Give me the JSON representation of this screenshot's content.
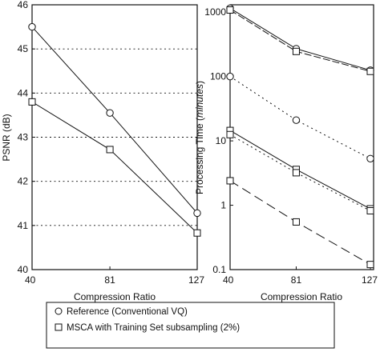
{
  "chart_data": [
    {
      "type": "line",
      "xlabel": "Compression Ratio",
      "ylabel": "PSNR (dB)",
      "x": [
        40,
        81,
        127
      ],
      "x_tick_labels": [
        "40",
        "81",
        "127"
      ],
      "y_ticks": [
        40,
        41,
        42,
        43,
        44,
        45,
        46
      ],
      "y_tick_labels": [
        "40",
        "41",
        "42",
        "43",
        "44",
        "45",
        "46"
      ],
      "ylim": [
        40,
        46
      ],
      "grid": "dotted horizontal at 41, 42, 43, 44, 45",
      "series": [
        {
          "marker": "circle",
          "dash": "solid",
          "values": [
            45.5,
            43.55,
            41.28
          ]
        },
        {
          "marker": "square",
          "dash": "solid",
          "values": [
            43.8,
            42.72,
            40.83
          ]
        }
      ]
    },
    {
      "type": "line",
      "xlabel": "Compression Ratio",
      "ylabel_prefix": "Processing Time (",
      "ylabel_italic": "minutes",
      "ylabel_suffix": ")",
      "scale": "log",
      "x": [
        40,
        81,
        127
      ],
      "x_tick_labels": [
        "40",
        "81",
        "127"
      ],
      "y_ticks": [
        0.1,
        1,
        10,
        100,
        1000
      ],
      "y_tick_labels": [
        "0.1",
        "1",
        "10",
        "100",
        "1000"
      ],
      "ylim": [
        0.1,
        1300
      ],
      "series": [
        {
          "marker": "circle",
          "dash": "solid",
          "values": [
            1150,
            270,
            125
          ]
        },
        {
          "marker": "square",
          "dash": "dashed",
          "values": [
            1080,
            245,
            120
          ]
        },
        {
          "marker": "circle",
          "dash": "dotted",
          "values": [
            100,
            21,
            5.3
          ]
        },
        {
          "marker": "square",
          "dash": "solid",
          "values": [
            14.5,
            3.6,
            0.88
          ]
        },
        {
          "marker": "square",
          "dash": "dotted",
          "values": [
            12.5,
            3.2,
            0.82
          ]
        },
        {
          "marker": "square",
          "dash": "longdash",
          "values": [
            2.4,
            0.55,
            0.12
          ]
        }
      ]
    }
  ],
  "legend": {
    "items": [
      {
        "marker": "circle",
        "label": "Reference (Conventional VQ)"
      },
      {
        "marker": "square",
        "label": "MSCA with Training Set subsampling (2%)"
      }
    ]
  }
}
